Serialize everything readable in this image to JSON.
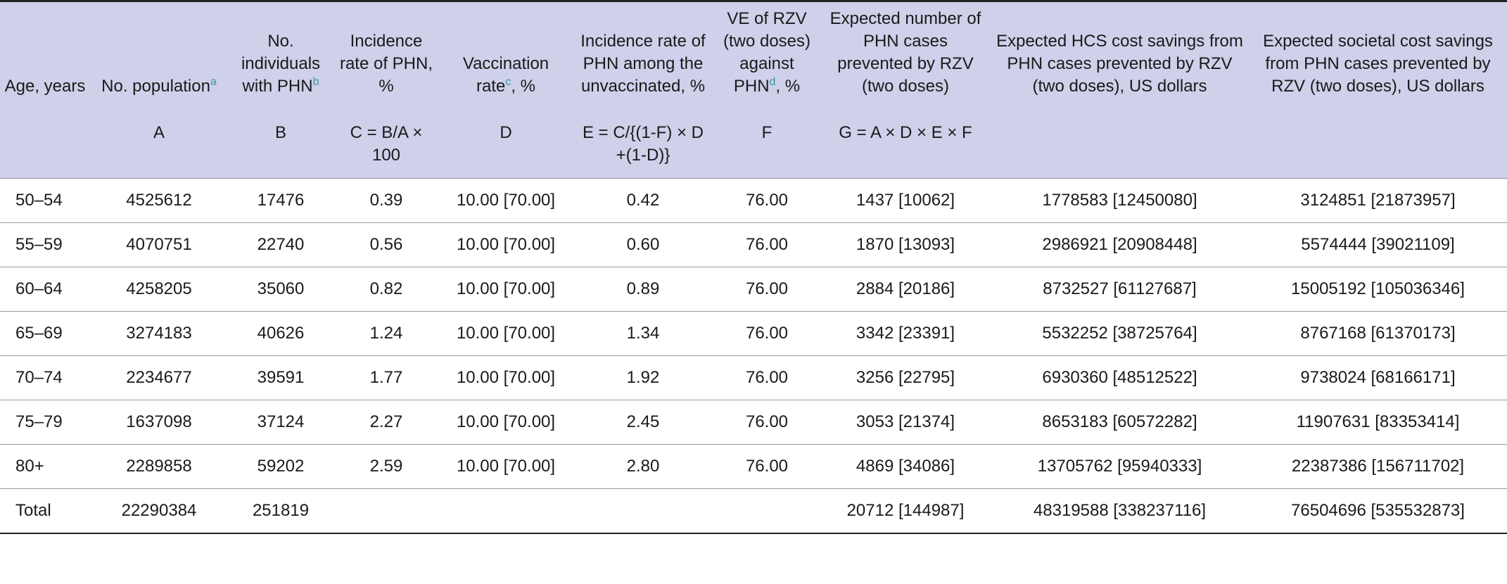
{
  "headers": {
    "age": "Age, years",
    "population": "No. population",
    "population_sup": "a",
    "individuals": "No. individuals with PHN",
    "individuals_sup": "b",
    "incidence": "Incidence rate of PHN, %",
    "vacc_pre": "Vaccination rate",
    "vacc_sup": "c",
    "vacc_post": ", %",
    "unvacc": "Incidence rate of PHN among the unvaccinated, %",
    "ve_pre": "VE of RZV (two doses) against PHN",
    "ve_sup": "d",
    "ve_post": ", %",
    "expected": "Expected number of PHN cases prevented by RZV (two doses)",
    "hcs": "Expected HCS cost savings from PHN cases prevented by RZV (two doses), US dollars",
    "societal": "Expected societal cost savings from PHN cases prevented by RZV (two doses), US dollars"
  },
  "formulas": {
    "age": "",
    "population": "A",
    "individuals": "B",
    "incidence": "C = B/A × 100",
    "vacc": "D",
    "unvacc": "E = C/{(1-F) × D +(1-D)}",
    "ve": "F",
    "expected": "G = A × D × E × F",
    "hcs": "",
    "societal": ""
  },
  "rows": [
    {
      "age": "50–54",
      "population": "4525612",
      "individuals": "17476",
      "incidence": "0.39",
      "vacc": "10.00 [70.00]",
      "unvacc": "0.42",
      "ve": "76.00",
      "expected": "1437 [10062]",
      "hcs": "1778583 [12450080]",
      "societal": "3124851 [21873957]"
    },
    {
      "age": "55–59",
      "population": "4070751",
      "individuals": "22740",
      "incidence": "0.56",
      "vacc": "10.00 [70.00]",
      "unvacc": "0.60",
      "ve": "76.00",
      "expected": "1870 [13093]",
      "hcs": "2986921 [20908448]",
      "societal": "5574444 [39021109]"
    },
    {
      "age": "60–64",
      "population": "4258205",
      "individuals": "35060",
      "incidence": "0.82",
      "vacc": "10.00 [70.00]",
      "unvacc": "0.89",
      "ve": "76.00",
      "expected": "2884 [20186]",
      "hcs": "8732527 [61127687]",
      "societal": "15005192 [105036346]"
    },
    {
      "age": "65–69",
      "population": "3274183",
      "individuals": "40626",
      "incidence": "1.24",
      "vacc": "10.00 [70.00]",
      "unvacc": "1.34",
      "ve": "76.00",
      "expected": "3342 [23391]",
      "hcs": "5532252 [38725764]",
      "societal": "8767168 [61370173]"
    },
    {
      "age": "70–74",
      "population": "2234677",
      "individuals": "39591",
      "incidence": "1.77",
      "vacc": "10.00 [70.00]",
      "unvacc": "1.92",
      "ve": "76.00",
      "expected": "3256 [22795]",
      "hcs": "6930360 [48512522]",
      "societal": "9738024 [68166171]"
    },
    {
      "age": "75–79",
      "population": "1637098",
      "individuals": "37124",
      "incidence": "2.27",
      "vacc": "10.00 [70.00]",
      "unvacc": "2.45",
      "ve": "76.00",
      "expected": "3053 [21374]",
      "hcs": "8653183 [60572282]",
      "societal": "11907631 [83353414]"
    },
    {
      "age": "80+",
      "population": "2289858",
      "individuals": "59202",
      "incidence": "2.59",
      "vacc": "10.00 [70.00]",
      "unvacc": "2.80",
      "ve": "76.00",
      "expected": "4869 [34086]",
      "hcs": "13705762 [95940333]",
      "societal": "22387386 [156711702]"
    },
    {
      "age": "Total",
      "population": "22290384",
      "individuals": "251819",
      "incidence": "",
      "vacc": "",
      "unvacc": "",
      "ve": "",
      "expected": "20712 [144987]",
      "hcs": "48319588 [338237116]",
      "societal": "76504696 [535532873]"
    }
  ],
  "colors": {
    "header_bg": "#cfd0ea",
    "footnote_sup": "#3a9a9a"
  }
}
